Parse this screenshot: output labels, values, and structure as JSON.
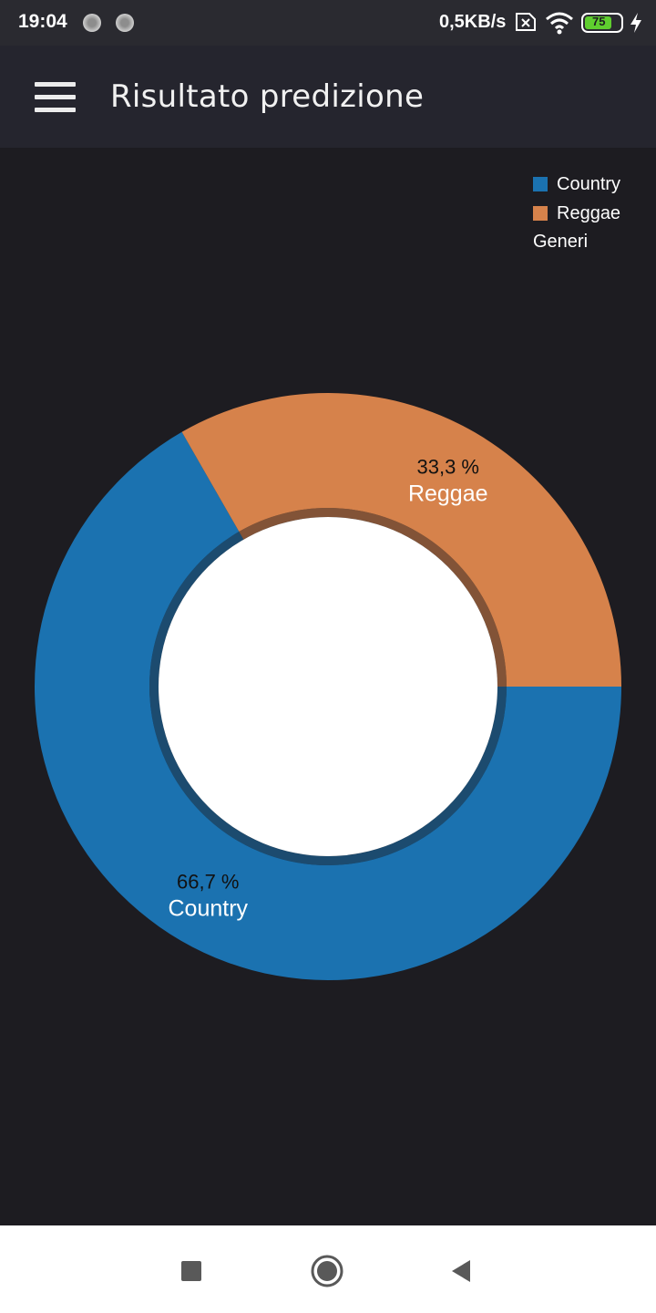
{
  "status_bar": {
    "time": "19:04",
    "speed": "0,5KB/s",
    "battery": "75"
  },
  "app_bar": {
    "title": "Risultato predizione"
  },
  "legend": {
    "items": [
      {
        "label": "Country",
        "color": "#1b72b0"
      },
      {
        "label": "Reggae",
        "color": "#d6824b"
      }
    ],
    "title": "Generi",
    "placement": "top-right"
  },
  "chart_data": {
    "type": "pie",
    "variant": "donut",
    "slices": [
      {
        "label": "Country",
        "percent_label": "66,7 %",
        "value": 66.7,
        "color": "#1b72b0"
      },
      {
        "label": "Reggae",
        "percent_label": "33,3 %",
        "value": 33.3,
        "color": "#d6824b"
      }
    ],
    "legend_title": "Generi"
  },
  "nav_bar": {
    "icons": [
      "recents-square-icon",
      "home-circle-icon",
      "back-triangle-icon"
    ]
  }
}
